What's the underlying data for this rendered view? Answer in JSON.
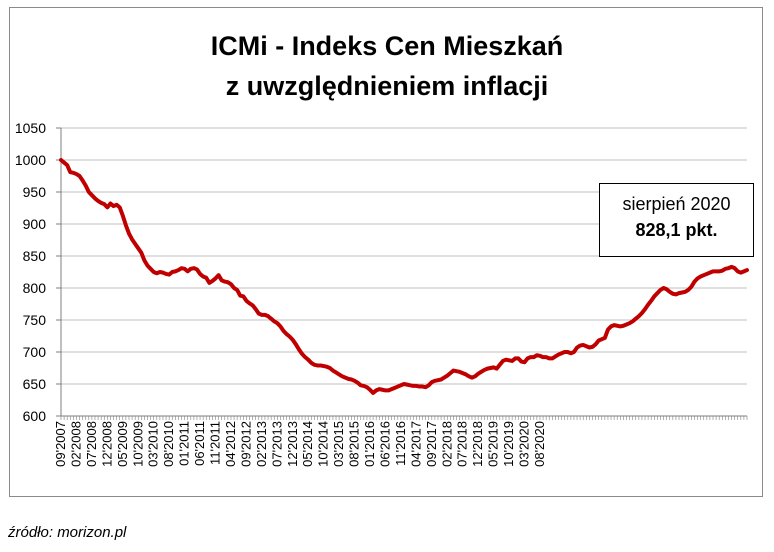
{
  "title_line1": "ICMi - Indeks Cen Mieszkań",
  "title_line2": "z uwzględnieniem inflacji",
  "annotation": {
    "line1": "sierpień 2020",
    "line2": "828,1 pkt."
  },
  "source": "źródło: morizon.pl",
  "colors": {
    "line": "#c00000",
    "grid": "#bfbfbf",
    "axis": "#7f7f7f"
  },
  "chart_data": {
    "type": "line",
    "title": "ICMi - Indeks Cen Mieszkań z uwzględnieniem inflacji",
    "xlabel": "",
    "ylabel": "",
    "ylim": [
      600,
      1050
    ],
    "yticks": [
      600,
      650,
      700,
      750,
      800,
      850,
      900,
      950,
      1000,
      1050
    ],
    "grid": true,
    "xtick_labels": [
      "09'2007",
      "02'2008",
      "07'2008",
      "12'2008",
      "05'2009",
      "10'2009",
      "03'2010",
      "08'2010",
      "01'2011",
      "06'2011",
      "11'2011",
      "04'2012",
      "09'2012",
      "02'2013",
      "07'2013",
      "12'2013",
      "05'2014",
      "10'2014",
      "03'2015",
      "08'2015",
      "01'2016",
      "06'2016",
      "11'2016",
      "04'2017",
      "09'2017",
      "02'2018",
      "07'2018",
      "12'2018",
      "05'2019",
      "10'2019",
      "03'2020",
      "08'2020"
    ],
    "series": [
      {
        "start": "09'2007",
        "values": [
          1000,
          996,
          992,
          981,
          980,
          978,
          975,
          968,
          960,
          950,
          945,
          940,
          936,
          933,
          931,
          926,
          932,
          928,
          930,
          926,
          913,
          898,
          885,
          876,
          869,
          862,
          855,
          843,
          835,
          830,
          825,
          823,
          825,
          824,
          822,
          821,
          825,
          826,
          828,
          831,
          830,
          826,
          830,
          831,
          829,
          822,
          818,
          816,
          808,
          811,
          815,
          820,
          812,
          810,
          809,
          806,
          800,
          797,
          788,
          787,
          780,
          776,
          773,
          767,
          760,
          758,
          758,
          756,
          752,
          748,
          745,
          740,
          733,
          728,
          724,
          719,
          712,
          704,
          697,
          692,
          688,
          683,
          680,
          679,
          679,
          678,
          677,
          675,
          671,
          668,
          665,
          662,
          660,
          658,
          657,
          655,
          652,
          648,
          647,
          645,
          641,
          636,
          640,
          642,
          641,
          640,
          640,
          642,
          644,
          646,
          648,
          650,
          649,
          648,
          647,
          647,
          646,
          646,
          645,
          648,
          653,
          655,
          656,
          657,
          660,
          663,
          667,
          671,
          670,
          669,
          667,
          665,
          662,
          660,
          662,
          666,
          669,
          672,
          674,
          675,
          676,
          674,
          680,
          686,
          688,
          687,
          686,
          690,
          690,
          685,
          684,
          690,
          692,
          692,
          695,
          694,
          692,
          692,
          690,
          690,
          693,
          696,
          698,
          700,
          700,
          698,
          700,
          707,
          710,
          711,
          709,
          707,
          708,
          712,
          718,
          720,
          722,
          735,
          740,
          742,
          741,
          740,
          741,
          743,
          745,
          748,
          752,
          756,
          761,
          767,
          774,
          780,
          787,
          792,
          797,
          800,
          798,
          794,
          791,
          790,
          792,
          793,
          794,
          797,
          802,
          810,
          815,
          818,
          820,
          822,
          824,
          826,
          826,
          826,
          827,
          830,
          831,
          833,
          831,
          826,
          824,
          826,
          828
        ]
      }
    ]
  }
}
